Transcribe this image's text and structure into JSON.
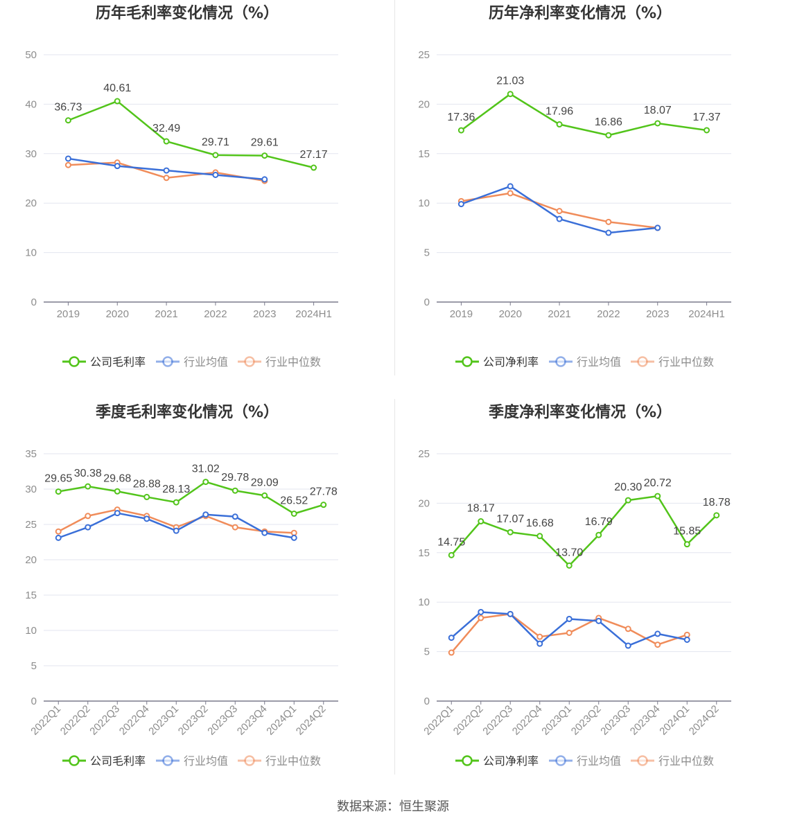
{
  "chart_data": [
    {
      "type": "line",
      "title": "历年毛利率变化情况（%）",
      "categories": [
        "2019",
        "2020",
        "2021",
        "2022",
        "2023",
        "2024H1"
      ],
      "ylim": [
        0,
        50
      ],
      "yticks": [
        0,
        10,
        20,
        30,
        40,
        50
      ],
      "grid": true,
      "legend_position": "bottom",
      "series": [
        {
          "name": "公司毛利率",
          "color": "#52c41a",
          "labels": true,
          "values": [
            36.73,
            40.61,
            32.49,
            29.71,
            29.61,
            27.17
          ]
        },
        {
          "name": "行业均值",
          "color": "#3a6fd8",
          "labels": false,
          "values": [
            29.0,
            27.5,
            26.6,
            25.7,
            24.8,
            null
          ]
        },
        {
          "name": "行业中位数",
          "color": "#f08c5a",
          "labels": false,
          "values": [
            27.7,
            28.2,
            25.1,
            26.2,
            24.5,
            null
          ]
        }
      ]
    },
    {
      "type": "line",
      "title": "历年净利率变化情况（%）",
      "categories": [
        "2019",
        "2020",
        "2021",
        "2022",
        "2023",
        "2024H1"
      ],
      "ylim": [
        0,
        25
      ],
      "yticks": [
        0,
        5,
        10,
        15,
        20,
        25
      ],
      "grid": true,
      "legend_position": "bottom",
      "series": [
        {
          "name": "公司净利率",
          "color": "#52c41a",
          "labels": true,
          "values": [
            17.36,
            21.03,
            17.96,
            16.86,
            18.07,
            17.37
          ]
        },
        {
          "name": "行业均值",
          "color": "#3a6fd8",
          "labels": false,
          "values": [
            9.9,
            11.7,
            8.4,
            7.0,
            7.5,
            null
          ]
        },
        {
          "name": "行业中位数",
          "color": "#f08c5a",
          "labels": false,
          "values": [
            10.2,
            11.0,
            9.2,
            8.1,
            7.5,
            null
          ]
        }
      ]
    },
    {
      "type": "line",
      "title": "季度毛利率变化情况（%）",
      "categories": [
        "2022Q1",
        "2022Q2",
        "2022Q3",
        "2022Q4",
        "2023Q1",
        "2023Q2",
        "2023Q3",
        "2023Q4",
        "2024Q1",
        "2024Q2"
      ],
      "rotate_xticks": true,
      "ylim": [
        0,
        35
      ],
      "yticks": [
        0,
        5,
        10,
        15,
        20,
        25,
        30,
        35
      ],
      "grid": true,
      "legend_position": "bottom",
      "series": [
        {
          "name": "公司毛利率",
          "color": "#52c41a",
          "labels": true,
          "values": [
            29.65,
            30.38,
            29.68,
            28.88,
            28.13,
            31.02,
            29.78,
            29.09,
            26.52,
            27.78
          ]
        },
        {
          "name": "行业均值",
          "color": "#3a6fd8",
          "labels": false,
          "values": [
            23.1,
            24.6,
            26.6,
            25.8,
            24.1,
            26.4,
            26.1,
            23.8,
            23.1,
            null
          ]
        },
        {
          "name": "行业中位数",
          "color": "#f08c5a",
          "labels": false,
          "values": [
            24.0,
            26.2,
            27.1,
            26.2,
            24.6,
            26.2,
            24.6,
            24.0,
            23.8,
            null
          ]
        }
      ]
    },
    {
      "type": "line",
      "title": "季度净利率变化情况（%）",
      "categories": [
        "2022Q1",
        "2022Q2",
        "2022Q3",
        "2022Q4",
        "2023Q1",
        "2023Q2",
        "2023Q3",
        "2023Q4",
        "2024Q1",
        "2024Q2"
      ],
      "rotate_xticks": true,
      "ylim": [
        0,
        25
      ],
      "yticks": [
        0,
        5,
        10,
        15,
        20,
        25
      ],
      "grid": true,
      "legend_position": "bottom",
      "series": [
        {
          "name": "公司净利率",
          "color": "#52c41a",
          "labels": true,
          "values": [
            14.75,
            18.17,
            17.07,
            16.68,
            13.7,
            16.79,
            20.3,
            20.72,
            15.85,
            18.78
          ]
        },
        {
          "name": "行业均值",
          "color": "#3a6fd8",
          "labels": false,
          "values": [
            6.4,
            9.0,
            8.8,
            5.8,
            8.3,
            8.1,
            5.6,
            6.8,
            6.2,
            null
          ]
        },
        {
          "name": "行业中位数",
          "color": "#f08c5a",
          "labels": false,
          "values": [
            4.9,
            8.4,
            8.8,
            6.5,
            6.9,
            8.4,
            7.3,
            5.7,
            6.7,
            null
          ]
        }
      ]
    }
  ],
  "source_text": "数据来源：恒生聚源"
}
